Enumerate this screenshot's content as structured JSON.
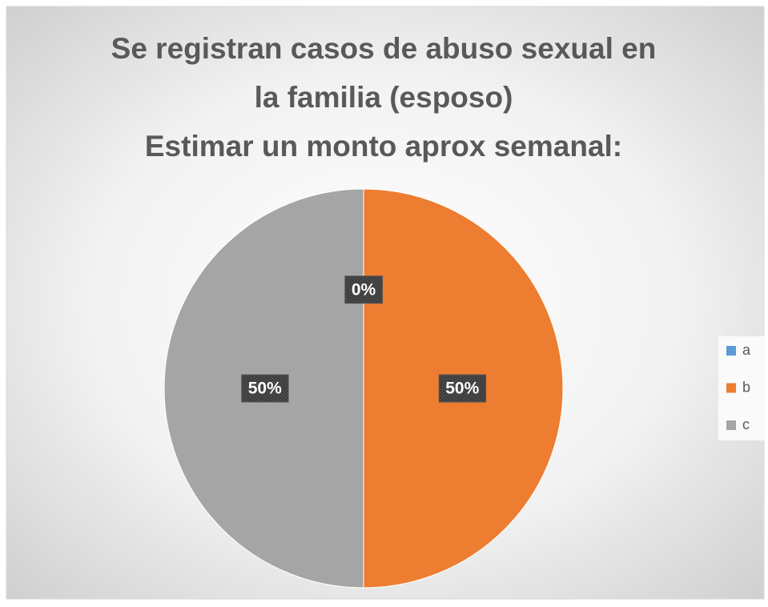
{
  "chart_data": {
    "type": "pie",
    "title": [
      "Se registran casos de abuso sexual en",
      "la familia (esposo)",
      "Estimar un monto aprox semanal:"
    ],
    "categories": [
      "a",
      "b",
      "c"
    ],
    "values": [
      0,
      50,
      50
    ],
    "value_labels": [
      "0%",
      "50%",
      "50%"
    ],
    "colors": [
      "#5b9bd5",
      "#ed7d31",
      "#a5a5a5"
    ],
    "legend": "right"
  }
}
